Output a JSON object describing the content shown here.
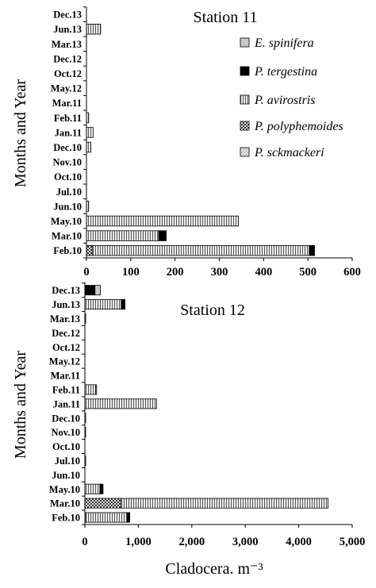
{
  "chart_data": [
    {
      "type": "bar",
      "orientation": "horizontal",
      "stacked": true,
      "title": "Station 11",
      "ylabel": "Months and Year",
      "xlabel": "",
      "xlim": [
        0,
        600
      ],
      "xticks": [
        "0",
        "100",
        "200",
        "300",
        "400",
        "500",
        "600"
      ],
      "categories": [
        "Feb.10",
        "Mar.10",
        "May.10",
        "Jun.10",
        "Jul.10",
        "Oct.10",
        "Nov.10",
        "Dec.10",
        "Jan.11",
        "Feb.11",
        "Mar.11",
        "May.12",
        "Oct.12",
        "Dec.12",
        "Mar.13",
        "Jun.13",
        "Dec.13"
      ],
      "series": [
        {
          "name": "P. sckmackeri",
          "values": [
            0,
            0,
            0,
            0,
            0,
            0,
            0,
            0,
            0,
            0,
            0,
            0,
            0,
            0,
            0,
            0,
            0
          ]
        },
        {
          "name": "P. polyphemoides",
          "values": [
            13,
            0,
            0,
            0,
            0,
            0,
            0,
            0,
            0,
            0,
            0,
            0,
            0,
            0,
            0,
            0,
            0
          ]
        },
        {
          "name": "P. avirostris",
          "values": [
            490,
            163,
            343,
            5,
            0,
            0,
            0,
            10,
            15,
            5,
            0,
            0,
            0,
            0,
            0,
            32,
            0
          ]
        },
        {
          "name": "P. tergestina",
          "values": [
            12,
            17,
            0,
            0,
            0,
            0,
            0,
            0,
            0,
            0,
            0,
            0,
            0,
            0,
            0,
            0,
            0
          ]
        },
        {
          "name": "E. spinifera",
          "values": [
            0,
            0,
            0,
            0,
            0,
            0,
            0,
            0,
            0,
            0,
            0,
            0,
            0,
            0,
            0,
            0,
            0
          ]
        }
      ],
      "legend": {
        "position": "right",
        "order": [
          "E. spinifera",
          "P. tergestina",
          "P. avirostris",
          "P. polyphemoides",
          "P. sckmackeri"
        ]
      }
    },
    {
      "type": "bar",
      "orientation": "horizontal",
      "stacked": true,
      "title": "Station 12",
      "ylabel": "Months and Year",
      "xlabel": "Cladocera. m⁻³",
      "xlim": [
        0,
        5000
      ],
      "xticks": [
        "0",
        "1,000",
        "2,000",
        "3,000",
        "4,000",
        "5,000"
      ],
      "categories": [
        "Feb.10",
        "Mar.10",
        "May.10",
        "Jun.10",
        "Jul.10",
        "Oct.10",
        "Nov.10",
        "Dec.10",
        "Jan.11",
        "Feb.11",
        "Mar.11",
        "May.12",
        "Oct.12",
        "Dec.12",
        "Mar.13",
        "Jun.13",
        "Dec.13"
      ],
      "series": [
        {
          "name": "P. sckmackeri",
          "values": [
            20,
            0,
            0,
            0,
            0,
            0,
            0,
            0,
            0,
            0,
            0,
            0,
            0,
            0,
            0,
            0,
            0
          ]
        },
        {
          "name": "P. polyphemoides",
          "values": [
            0,
            670,
            0,
            0,
            0,
            0,
            0,
            0,
            0,
            0,
            0,
            0,
            0,
            0,
            0,
            0,
            0
          ]
        },
        {
          "name": "P. avirostris",
          "values": [
            770,
            3880,
            280,
            0,
            10,
            0,
            15,
            10,
            1340,
            200,
            0,
            0,
            0,
            0,
            10,
            680,
            0
          ]
        },
        {
          "name": "P. tergestina",
          "values": [
            50,
            0,
            60,
            0,
            0,
            0,
            0,
            0,
            0,
            0,
            0,
            0,
            0,
            0,
            0,
            70,
            190
          ]
        },
        {
          "name": "E. spinifera",
          "values": [
            0,
            0,
            0,
            0,
            0,
            0,
            0,
            0,
            0,
            20,
            0,
            0,
            0,
            0,
            0,
            0,
            100
          ]
        }
      ]
    }
  ]
}
